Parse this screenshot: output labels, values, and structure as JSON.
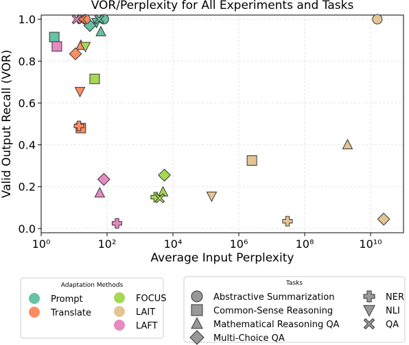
{
  "chart_data": {
    "type": "scatter",
    "title": "VOR/Perplexity for All Experiments and Tasks",
    "xlabel": "Average Input Perplexity",
    "ylabel": "Valid Output Recall (VOR)",
    "x_scale": "log",
    "xlim": [
      1,
      100000000000
    ],
    "ylim": [
      -0.02,
      1.02
    ],
    "x_ticks": [
      {
        "value": 1,
        "label": "10⁰"
      },
      {
        "value": 100,
        "label": "10²"
      },
      {
        "value": 10000,
        "label": "10⁴"
      },
      {
        "value": 1000000,
        "label": "10⁶"
      },
      {
        "value": 100000000,
        "label": "10⁸"
      },
      {
        "value": 10000000000,
        "label": "10¹⁰"
      }
    ],
    "y_ticks": [
      {
        "value": 0.0,
        "label": "0.0"
      },
      {
        "value": 0.2,
        "label": "0.2"
      },
      {
        "value": 0.4,
        "label": "0.4"
      },
      {
        "value": 0.6,
        "label": "0.6"
      },
      {
        "value": 0.8,
        "label": "0.8"
      },
      {
        "value": 1.0,
        "label": "1.0"
      }
    ],
    "grid": true,
    "method_legend": {
      "title": "Adaptation Methods",
      "placement": "bottom-left",
      "items": [
        {
          "key": "prompt",
          "label": "Prompt",
          "color": "#66c2a5"
        },
        {
          "key": "translate",
          "label": "Translate",
          "color": "#fc8d62"
        },
        {
          "key": "focus",
          "label": "FOCUS",
          "color": "#a6d854"
        },
        {
          "key": "lait",
          "label": "LAIT",
          "color": "#e5c494"
        },
        {
          "key": "laft",
          "label": "LAFT",
          "color": "#e78ac3"
        }
      ]
    },
    "task_legend": {
      "title": "Tasks",
      "placement": "bottom-right",
      "items": [
        {
          "key": "abs",
          "label": "Abstractive Summarization",
          "marker": "circle"
        },
        {
          "key": "csr",
          "label": "Common-Sense Reasoning",
          "marker": "square"
        },
        {
          "key": "mrqa",
          "label": "Mathematical Reasoning QA",
          "marker": "triangle-up"
        },
        {
          "key": "mcqa",
          "label": "Multi-Choice QA",
          "marker": "diamond"
        },
        {
          "key": "ner",
          "label": "NER",
          "marker": "plus"
        },
        {
          "key": "nli",
          "label": "NLI",
          "marker": "triangle-down"
        },
        {
          "key": "qa",
          "label": "QA",
          "marker": "x"
        }
      ]
    },
    "points": [
      {
        "method": "prompt",
        "task": "abs",
        "x": 80,
        "y": 1.0
      },
      {
        "method": "prompt",
        "task": "csr",
        "x": 2.5,
        "y": 0.915
      },
      {
        "method": "prompt",
        "task": "mrqa",
        "x": 65,
        "y": 0.94
      },
      {
        "method": "prompt",
        "task": "mcqa",
        "x": 30,
        "y": 0.97
      },
      {
        "method": "prompt",
        "task": "nli",
        "x": 48,
        "y": 0.985
      },
      {
        "method": "prompt",
        "task": "qa",
        "x": 58,
        "y": 1.0
      },
      {
        "method": "translate",
        "task": "abs",
        "x": 22,
        "y": 1.0
      },
      {
        "method": "translate",
        "task": "csr",
        "x": 16,
        "y": 0.48
      },
      {
        "method": "translate",
        "task": "mrqa",
        "x": 16,
        "y": 0.875
      },
      {
        "method": "translate",
        "task": "mcqa",
        "x": 11,
        "y": 0.835
      },
      {
        "method": "translate",
        "task": "ner",
        "x": 14,
        "y": 0.49
      },
      {
        "method": "translate",
        "task": "nli",
        "x": 15,
        "y": 0.655
      },
      {
        "method": "translate",
        "task": "qa",
        "x": 17,
        "y": 1.0
      },
      {
        "method": "focus",
        "task": "csr",
        "x": 42,
        "y": 0.715
      },
      {
        "method": "focus",
        "task": "mrqa",
        "x": 5000,
        "y": 0.175
      },
      {
        "method": "focus",
        "task": "mcqa",
        "x": 5500,
        "y": 0.255
      },
      {
        "method": "focus",
        "task": "ner",
        "x": 3000,
        "y": 0.15
      },
      {
        "method": "focus",
        "task": "nli",
        "x": 22,
        "y": 0.87
      },
      {
        "method": "focus",
        "task": "qa",
        "x": 4000,
        "y": 0.145
      },
      {
        "method": "lait",
        "task": "abs",
        "x": 16000000000,
        "y": 1.0
      },
      {
        "method": "lait",
        "task": "csr",
        "x": 2500000,
        "y": 0.325
      },
      {
        "method": "lait",
        "task": "mrqa",
        "x": 2000000000,
        "y": 0.4
      },
      {
        "method": "lait",
        "task": "mcqa",
        "x": 25000000000,
        "y": 0.045
      },
      {
        "method": "lait",
        "task": "ner",
        "x": 30000000,
        "y": 0.035
      },
      {
        "method": "lait",
        "task": "nli",
        "x": 150000,
        "y": 0.155
      },
      {
        "method": "laft",
        "task": "csr",
        "x": 3,
        "y": 0.87
      },
      {
        "method": "laft",
        "task": "mrqa",
        "x": 60,
        "y": 0.17
      },
      {
        "method": "laft",
        "task": "mcqa",
        "x": 80,
        "y": 0.235
      },
      {
        "method": "laft",
        "task": "ner",
        "x": 200,
        "y": 0.025
      },
      {
        "method": "laft",
        "task": "qa",
        "x": 12,
        "y": 1.0
      }
    ]
  }
}
